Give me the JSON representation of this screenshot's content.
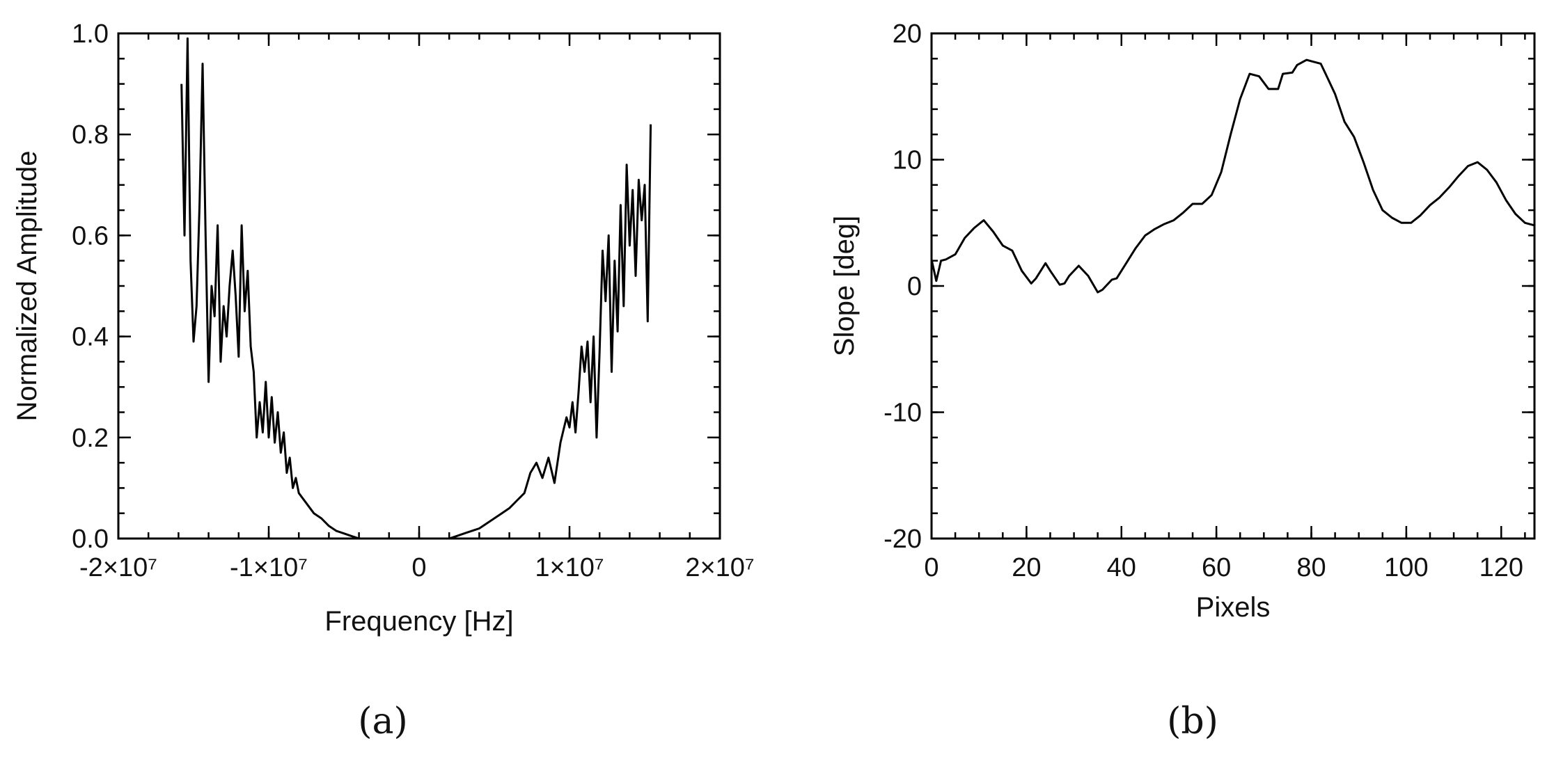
{
  "chart_data": [
    {
      "id": "a",
      "type": "line",
      "panel_label": "(a)",
      "xlabel": "Frequency [Hz]",
      "ylabel": "Normalized Amplitude",
      "xlim": [
        -20000000,
        20000000
      ],
      "ylim": [
        0,
        1
      ],
      "xticks": [
        -20000000,
        -10000000,
        0,
        10000000,
        20000000
      ],
      "xtick_labels": [
        "-2×10⁷",
        "-1×10⁷",
        "0",
        "1×10⁷",
        "2×10⁷"
      ],
      "yticks": [
        0,
        0.2,
        0.4,
        0.6,
        0.8,
        1.0
      ],
      "ytick_labels": [
        "0.0",
        "0.2",
        "0.4",
        "0.6",
        "0.8",
        "1.0"
      ],
      "series": [
        {
          "name": "spectrum",
          "x": [
            -15800000,
            -15600000,
            -15400000,
            -15200000,
            -15000000,
            -14800000,
            -14600000,
            -14400000,
            -14200000,
            -14000000,
            -13800000,
            -13600000,
            -13400000,
            -13200000,
            -13000000,
            -12800000,
            -12600000,
            -12400000,
            -12200000,
            -12000000,
            -11800000,
            -11600000,
            -11400000,
            -11200000,
            -11000000,
            -10800000,
            -10600000,
            -10400000,
            -10200000,
            -10000000,
            -9800000,
            -9600000,
            -9400000,
            -9200000,
            -9000000,
            -8800000,
            -8600000,
            -8400000,
            -8200000,
            -8000000,
            -7500000,
            -7000000,
            -6500000,
            -6000000,
            -5500000,
            -5000000,
            -4500000,
            -4000000,
            -3500000,
            -3000000,
            -2500000,
            -2000000,
            2000000,
            2500000,
            3000000,
            3500000,
            4000000,
            4500000,
            5000000,
            5500000,
            6000000,
            6500000,
            7000000,
            7400000,
            7800000,
            8200000,
            8600000,
            9000000,
            9400000,
            9800000,
            10000000,
            10200000,
            10400000,
            10600000,
            10800000,
            11000000,
            11200000,
            11400000,
            11600000,
            11800000,
            12000000,
            12200000,
            12400000,
            12600000,
            12800000,
            13000000,
            13200000,
            13400000,
            13600000,
            13800000,
            14000000,
            14200000,
            14400000,
            14600000,
            14800000,
            15000000,
            15200000,
            15400000
          ],
          "y": [
            0.9,
            0.6,
            0.99,
            0.55,
            0.39,
            0.46,
            0.66,
            0.94,
            0.6,
            0.31,
            0.5,
            0.44,
            0.62,
            0.35,
            0.46,
            0.4,
            0.5,
            0.57,
            0.48,
            0.36,
            0.62,
            0.45,
            0.53,
            0.38,
            0.33,
            0.2,
            0.27,
            0.21,
            0.31,
            0.2,
            0.28,
            0.19,
            0.25,
            0.17,
            0.21,
            0.13,
            0.16,
            0.1,
            0.12,
            0.09,
            0.07,
            0.05,
            0.04,
            0.025,
            0.015,
            0.01,
            0.005,
            0.0,
            0.0,
            0.0,
            0.0,
            0.0,
            0.0,
            0.005,
            0.01,
            0.015,
            0.02,
            0.03,
            0.04,
            0.05,
            0.06,
            0.075,
            0.09,
            0.13,
            0.15,
            0.12,
            0.16,
            0.11,
            0.19,
            0.24,
            0.22,
            0.27,
            0.21,
            0.29,
            0.38,
            0.33,
            0.39,
            0.27,
            0.4,
            0.2,
            0.37,
            0.57,
            0.47,
            0.6,
            0.33,
            0.55,
            0.41,
            0.66,
            0.46,
            0.74,
            0.58,
            0.69,
            0.52,
            0.71,
            0.63,
            0.7,
            0.43,
            0.82
          ]
        }
      ]
    },
    {
      "id": "b",
      "type": "line",
      "panel_label": "(b)",
      "xlabel": "Pixels",
      "ylabel": "Slope [deg]",
      "xlim": [
        0,
        127
      ],
      "ylim": [
        -20,
        20
      ],
      "xticks": [
        0,
        20,
        40,
        60,
        80,
        100,
        120
      ],
      "xtick_labels": [
        "0",
        "20",
        "40",
        "60",
        "80",
        "100",
        "120"
      ],
      "yticks": [
        -20,
        -10,
        0,
        10,
        20
      ],
      "ytick_labels": [
        "-20",
        "-10",
        "0",
        "10",
        "20"
      ],
      "series": [
        {
          "name": "slope",
          "x": [
            0,
            1,
            2,
            3,
            5,
            7,
            9,
            11,
            13,
            15,
            17,
            19,
            21,
            22,
            24,
            25,
            27,
            28,
            29,
            31,
            33,
            35,
            36,
            38,
            39,
            41,
            43,
            45,
            47,
            49,
            51,
            53,
            55,
            57,
            59,
            61,
            63,
            65,
            67,
            69,
            71,
            73,
            74,
            76,
            77,
            79,
            80,
            82,
            83,
            85,
            87,
            89,
            91,
            93,
            95,
            97,
            99,
            101,
            103,
            105,
            107,
            109,
            111,
            113,
            115,
            117,
            119,
            121,
            123,
            125,
            127
          ],
          "y": [
            2.1,
            0.4,
            2.0,
            2.1,
            2.5,
            3.8,
            4.6,
            5.2,
            4.3,
            3.2,
            2.8,
            1.2,
            0.2,
            0.6,
            1.8,
            1.2,
            0.1,
            0.2,
            0.8,
            1.6,
            0.8,
            -0.5,
            -0.3,
            0.5,
            0.6,
            1.8,
            3.0,
            4.0,
            4.5,
            4.9,
            5.2,
            5.8,
            6.5,
            6.5,
            7.2,
            9.0,
            12.0,
            14.8,
            16.8,
            16.6,
            15.6,
            15.6,
            16.8,
            16.9,
            17.5,
            17.9,
            17.8,
            17.6,
            16.8,
            15.2,
            13.0,
            11.8,
            9.8,
            7.6,
            6.0,
            5.4,
            5.0,
            5.0,
            5.6,
            6.4,
            7.0,
            7.8,
            8.7,
            9.5,
            9.8,
            9.2,
            8.2,
            6.8,
            5.7,
            5.0,
            4.8
          ]
        }
      ]
    }
  ]
}
